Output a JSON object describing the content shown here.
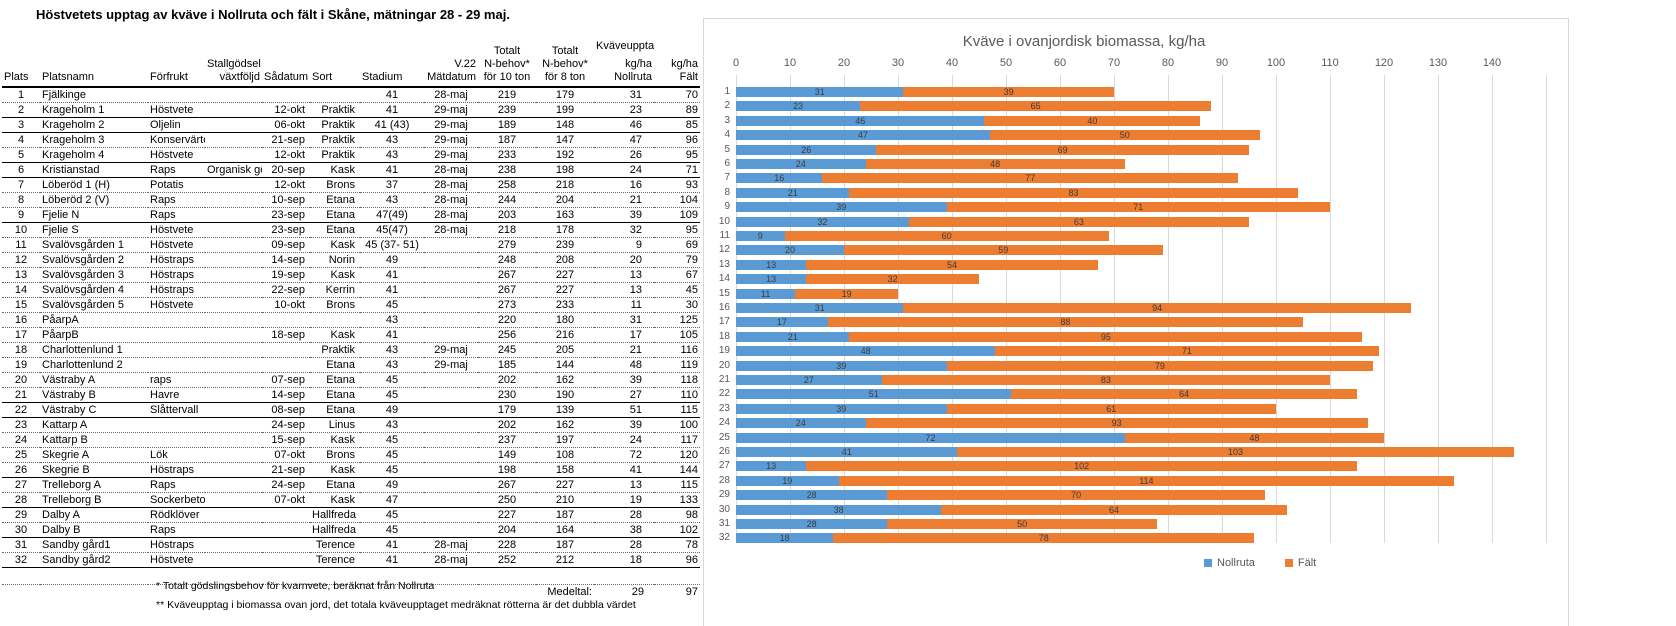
{
  "title": "Höstvetets upptag av kväve i Nollruta och fält i Skåne, mätningar 28 - 29 maj.",
  "table": {
    "columns": [
      "Plats",
      "Platsnamn",
      "Förfrukt",
      "Stallgödsel\nväxtföljd",
      "Sådatum",
      "Sort",
      "Stadium",
      "V.22\nMätdatum",
      "Totalt\nN-behov*\nför 10 ton",
      "Totalt\nN-behov*\nför 8 ton",
      "Kväveupptag**\nkg/ha\nNollruta",
      "kg/ha\nFält"
    ],
    "rows": [
      {
        "plats": "1",
        "platsnamn": "Fjälkinge",
        "forfrukt": "",
        "stallgodsel": "",
        "sadatum": "",
        "sort": "",
        "stadium": "41",
        "matdatum": "28-maj",
        "n10": "219",
        "n8": "179",
        "nollruta": "31",
        "falt": "70",
        "flag": false
      },
      {
        "plats": "2",
        "platsnamn": "Krageholm 1",
        "forfrukt": "Höstvete",
        "stallgodsel": "",
        "sadatum": "12-okt",
        "sort": "Praktik",
        "stadium": "41",
        "matdatum": "29-maj",
        "n10": "239",
        "n8": "199",
        "nollruta": "23",
        "falt": "89",
        "flag": true
      },
      {
        "plats": "3",
        "platsnamn": "Krageholm 2",
        "forfrukt": "Oljelin",
        "stallgodsel": "",
        "sadatum": "06-okt",
        "sort": "Praktik",
        "stadium": "41 (43)",
        "matdatum": "29-maj",
        "n10": "189",
        "n8": "148",
        "nollruta": "46",
        "falt": "85",
        "flag": false
      },
      {
        "plats": "4",
        "platsnamn": "Krageholm 3",
        "forfrukt": "Konservärtor",
        "stallgodsel": "",
        "sadatum": "21-sep",
        "sort": "Praktik",
        "stadium": "43",
        "matdatum": "29-maj",
        "n10": "187",
        "n8": "147",
        "nollruta": "47",
        "falt": "96",
        "flag": false
      },
      {
        "plats": "5",
        "platsnamn": "Krageholm 4",
        "forfrukt": "Höstvete",
        "stallgodsel": "",
        "sadatum": "12-okt",
        "sort": "Praktik",
        "stadium": "43",
        "matdatum": "29-maj",
        "n10": "233",
        "n8": "192",
        "nollruta": "26",
        "falt": "95",
        "flag": true
      },
      {
        "plats": "6",
        "platsnamn": "Kristianstad",
        "forfrukt": "Raps",
        "stallgodsel": "Organisk göd",
        "sadatum": "20-sep",
        "sort": "Kask",
        "stadium": "41",
        "matdatum": "28-maj",
        "n10": "238",
        "n8": "198",
        "nollruta": "24",
        "falt": "71",
        "flag": true
      },
      {
        "plats": "7",
        "platsnamn": "Löberöd 1 (H)",
        "forfrukt": "Potatis",
        "stallgodsel": "",
        "sadatum": "12-okt",
        "sort": "Brons",
        "stadium": "37",
        "matdatum": "28-maj",
        "n10": "258",
        "n8": "218",
        "nollruta": "16",
        "falt": "93",
        "flag": true
      },
      {
        "plats": "8",
        "platsnamn": "Löberöd 2 (V)",
        "forfrukt": "Raps",
        "stallgodsel": "",
        "sadatum": "10-sep",
        "sort": "Etana",
        "stadium": "43",
        "matdatum": "28-maj",
        "n10": "244",
        "n8": "204",
        "nollruta": "21",
        "falt": "104",
        "flag": true
      },
      {
        "plats": "9",
        "platsnamn": "Fjelie N",
        "forfrukt": "Raps",
        "stallgodsel": "",
        "sadatum": "23-sep",
        "sort": "Etana",
        "stadium": "47(49)",
        "matdatum": "28-maj",
        "n10": "203",
        "n8": "163",
        "nollruta": "39",
        "falt": "109",
        "flag": true
      },
      {
        "plats": "10",
        "platsnamn": "Fjelie S",
        "forfrukt": "Höstvete",
        "stallgodsel": "",
        "sadatum": "23-sep",
        "sort": "Etana",
        "stadium": "45(47)",
        "matdatum": "28-maj",
        "n10": "218",
        "n8": "178",
        "nollruta": "32",
        "falt": "95",
        "flag": false
      },
      {
        "plats": "11",
        "platsnamn": "Svalövsgården 1",
        "forfrukt": "Höstvete",
        "stallgodsel": "",
        "sadatum": "09-sep",
        "sort": "Kask",
        "stadium": "45 (37- 51)",
        "matdatum": "",
        "n10": "279",
        "n8": "239",
        "nollruta": "9",
        "falt": "69",
        "flag": false
      },
      {
        "plats": "12",
        "platsnamn": "Svalövsgården 2",
        "forfrukt": "Höstraps",
        "stallgodsel": "",
        "sadatum": "14-sep",
        "sort": "Norin",
        "stadium": "49",
        "matdatum": "",
        "n10": "248",
        "n8": "208",
        "nollruta": "20",
        "falt": "79",
        "flag": false
      },
      {
        "plats": "13",
        "platsnamn": "Svalövsgården 3",
        "forfrukt": "Höstraps",
        "stallgodsel": "",
        "sadatum": "19-sep",
        "sort": "Kask",
        "stadium": "41",
        "matdatum": "",
        "n10": "267",
        "n8": "227",
        "nollruta": "13",
        "falt": "67",
        "flag": false
      },
      {
        "plats": "14",
        "platsnamn": "Svalövsgården 4",
        "forfrukt": "Höstraps",
        "stallgodsel": "",
        "sadatum": "22-sep",
        "sort": "Kerrin",
        "stadium": "41",
        "matdatum": "",
        "n10": "267",
        "n8": "227",
        "nollruta": "13",
        "falt": "45",
        "flag": false
      },
      {
        "plats": "15",
        "platsnamn": "Svalövsgården 5",
        "forfrukt": "Höstvete",
        "stallgodsel": "",
        "sadatum": "10-okt",
        "sort": "Brons",
        "stadium": "45",
        "matdatum": "",
        "n10": "273",
        "n8": "233",
        "nollruta": "11",
        "falt": "30",
        "flag": false
      },
      {
        "plats": "16",
        "platsnamn": "PåarpA",
        "forfrukt": "",
        "stallgodsel": "",
        "sadatum": "",
        "sort": "",
        "stadium": "43",
        "matdatum": "",
        "n10": "220",
        "n8": "180",
        "nollruta": "31",
        "falt": "125",
        "flag": false
      },
      {
        "plats": "17",
        "platsnamn": "PåarpB",
        "forfrukt": "",
        "stallgodsel": "",
        "sadatum": "18-sep",
        "sort": "Kask",
        "stadium": "41",
        "matdatum": "",
        "n10": "256",
        "n8": "216",
        "nollruta": "17",
        "falt": "105",
        "flag": false
      },
      {
        "plats": "18",
        "platsnamn": "Charlottenlund 1",
        "forfrukt": "",
        "stallgodsel": "",
        "sadatum": "",
        "sort": "Praktik",
        "stadium": "43",
        "matdatum": "29-maj",
        "n10": "245",
        "n8": "205",
        "nollruta": "21",
        "falt": "116",
        "flag": true
      },
      {
        "plats": "19",
        "platsnamn": "Charlottenlund 2",
        "forfrukt": "",
        "stallgodsel": "",
        "sadatum": "",
        "sort": "Etana",
        "stadium": "43",
        "matdatum": "29-maj",
        "n10": "185",
        "n8": "144",
        "nollruta": "48",
        "falt": "119",
        "flag": false
      },
      {
        "plats": "20",
        "platsnamn": "Västraby A",
        "forfrukt": "raps",
        "stallgodsel": "",
        "sadatum": "07-sep",
        "sort": "Etana",
        "stadium": "45",
        "matdatum": "",
        "n10": "202",
        "n8": "162",
        "nollruta": "39",
        "falt": "118",
        "flag": false
      },
      {
        "plats": "21",
        "platsnamn": "Västraby B",
        "forfrukt": "Havre",
        "stallgodsel": "",
        "sadatum": "14-sep",
        "sort": "Etana",
        "stadium": "45",
        "matdatum": "",
        "n10": "230",
        "n8": "190",
        "nollruta": "27",
        "falt": "110",
        "flag": false
      },
      {
        "plats": "22",
        "platsnamn": "Västraby C",
        "forfrukt": "Slåttervall",
        "stallgodsel": "",
        "sadatum": "08-sep",
        "sort": "Etana",
        "stadium": "49",
        "matdatum": "",
        "n10": "179",
        "n8": "139",
        "nollruta": "51",
        "falt": "115",
        "flag": false
      },
      {
        "plats": "23",
        "platsnamn": "Kattarp A",
        "forfrukt": "",
        "stallgodsel": "",
        "sadatum": "24-sep",
        "sort": "Linus",
        "stadium": "43",
        "matdatum": "",
        "n10": "202",
        "n8": "162",
        "nollruta": "39",
        "falt": "100",
        "flag": false
      },
      {
        "plats": "24",
        "platsnamn": "Kattarp B",
        "forfrukt": "",
        "stallgodsel": "",
        "sadatum": "15-sep",
        "sort": "Kask",
        "stadium": "45",
        "matdatum": "",
        "n10": "237",
        "n8": "197",
        "nollruta": "24",
        "falt": "117",
        "flag": false
      },
      {
        "plats": "25",
        "platsnamn": "Skegrie A",
        "forfrukt": "Lök",
        "stallgodsel": "",
        "sadatum": "07-okt",
        "sort": "Brons",
        "stadium": "45",
        "matdatum": "",
        "n10": "149",
        "n8": "108",
        "nollruta": "72",
        "falt": "120",
        "flag": false
      },
      {
        "plats": "26",
        "platsnamn": "Skegrie B",
        "forfrukt": "Höstraps",
        "stallgodsel": "",
        "sadatum": "21-sep",
        "sort": "Kask",
        "stadium": "45",
        "matdatum": "",
        "n10": "198",
        "n8": "158",
        "nollruta": "41",
        "falt": "144",
        "flag": false
      },
      {
        "plats": "27",
        "platsnamn": "Trelleborg A",
        "forfrukt": "Raps",
        "stallgodsel": "",
        "sadatum": "24-sep",
        "sort": "Etana",
        "stadium": "49",
        "matdatum": "",
        "n10": "267",
        "n8": "227",
        "nollruta": "13",
        "falt": "115",
        "flag": false
      },
      {
        "plats": "28",
        "platsnamn": "Trelleborg B",
        "forfrukt": "Sockerbetor",
        "stallgodsel": "",
        "sadatum": "07-okt",
        "sort": "Kask",
        "stadium": "47",
        "matdatum": "",
        "n10": "250",
        "n8": "210",
        "nollruta": "19",
        "falt": "133",
        "flag": false
      },
      {
        "plats": "29",
        "platsnamn": "Dalby A",
        "forfrukt": "Rödklöver",
        "stallgodsel": "",
        "sadatum": "",
        "sort": "Hallfreda",
        "stadium": "45",
        "matdatum": "",
        "n10": "227",
        "n8": "187",
        "nollruta": "28",
        "falt": "98",
        "flag": false
      },
      {
        "plats": "30",
        "platsnamn": "Dalby B",
        "forfrukt": "Raps",
        "stallgodsel": "",
        "sadatum": "",
        "sort": "Hallfreda",
        "stadium": "45",
        "matdatum": "",
        "n10": "204",
        "n8": "164",
        "nollruta": "38",
        "falt": "102",
        "flag": false
      },
      {
        "plats": "31",
        "platsnamn": "Sandby gård1",
        "forfrukt": "Höstraps",
        "stallgodsel": "",
        "sadatum": "",
        "sort": "Terence",
        "stadium": "41",
        "matdatum": "28-maj",
        "n10": "228",
        "n8": "187",
        "nollruta": "28",
        "falt": "78",
        "flag": true
      },
      {
        "plats": "32",
        "platsnamn": "Sandby gård2",
        "forfrukt": "Höstvete",
        "stallgodsel": "",
        "sadatum": "",
        "sort": "Terence",
        "stadium": "41",
        "matdatum": "28-maj",
        "n10": "252",
        "n8": "212",
        "nollruta": "18",
        "falt": "96",
        "flag": true
      }
    ],
    "medeltal": {
      "label": "Medeltal:",
      "nollruta": "29",
      "falt": "97"
    },
    "footnotes": [
      "* Totalt gödslingsbehov för kvarnvete, beräknat från Nollruta",
      "** Kväveupptag i biomassa ovan jord, det totala kväveupptaget medräknat rötterna är det dubbla värdet"
    ]
  },
  "chart_data": {
    "type": "bar",
    "stacked": true,
    "orientation": "horizontal",
    "title": "Kväve i ovanjordisk biomassa, kg/ha",
    "categories": [
      1,
      2,
      3,
      4,
      5,
      6,
      7,
      8,
      9,
      10,
      11,
      12,
      13,
      14,
      15,
      16,
      17,
      18,
      19,
      20,
      21,
      22,
      23,
      24,
      25,
      26,
      27,
      28,
      29,
      30,
      31,
      32
    ],
    "series": [
      {
        "name": "Nollruta",
        "color": "#5B9BD5",
        "values": [
          31,
          23,
          46,
          47,
          26,
          24,
          16,
          21,
          39,
          32,
          9,
          20,
          13,
          13,
          11,
          31,
          17,
          21,
          48,
          39,
          27,
          51,
          39,
          24,
          72,
          41,
          13,
          19,
          28,
          38,
          28,
          18
        ]
      },
      {
        "name": "Fält",
        "color": "#ED7D31",
        "values": [
          39,
          65,
          40,
          50,
          69,
          48,
          77,
          83,
          71,
          63,
          60,
          59,
          54,
          32,
          19,
          94,
          88,
          95,
          71,
          79,
          83,
          64,
          61,
          93,
          48,
          103,
          102,
          114,
          70,
          64,
          50,
          78
        ]
      }
    ],
    "x_ticks": [
      0,
      10,
      20,
      30,
      40,
      50,
      60,
      70,
      80,
      90,
      100,
      110,
      120,
      130,
      140
    ],
    "xlim": [
      0,
      150
    ],
    "grid": true,
    "legend": [
      "Nollruta",
      "Fält"
    ],
    "legend_position": "bottom"
  }
}
